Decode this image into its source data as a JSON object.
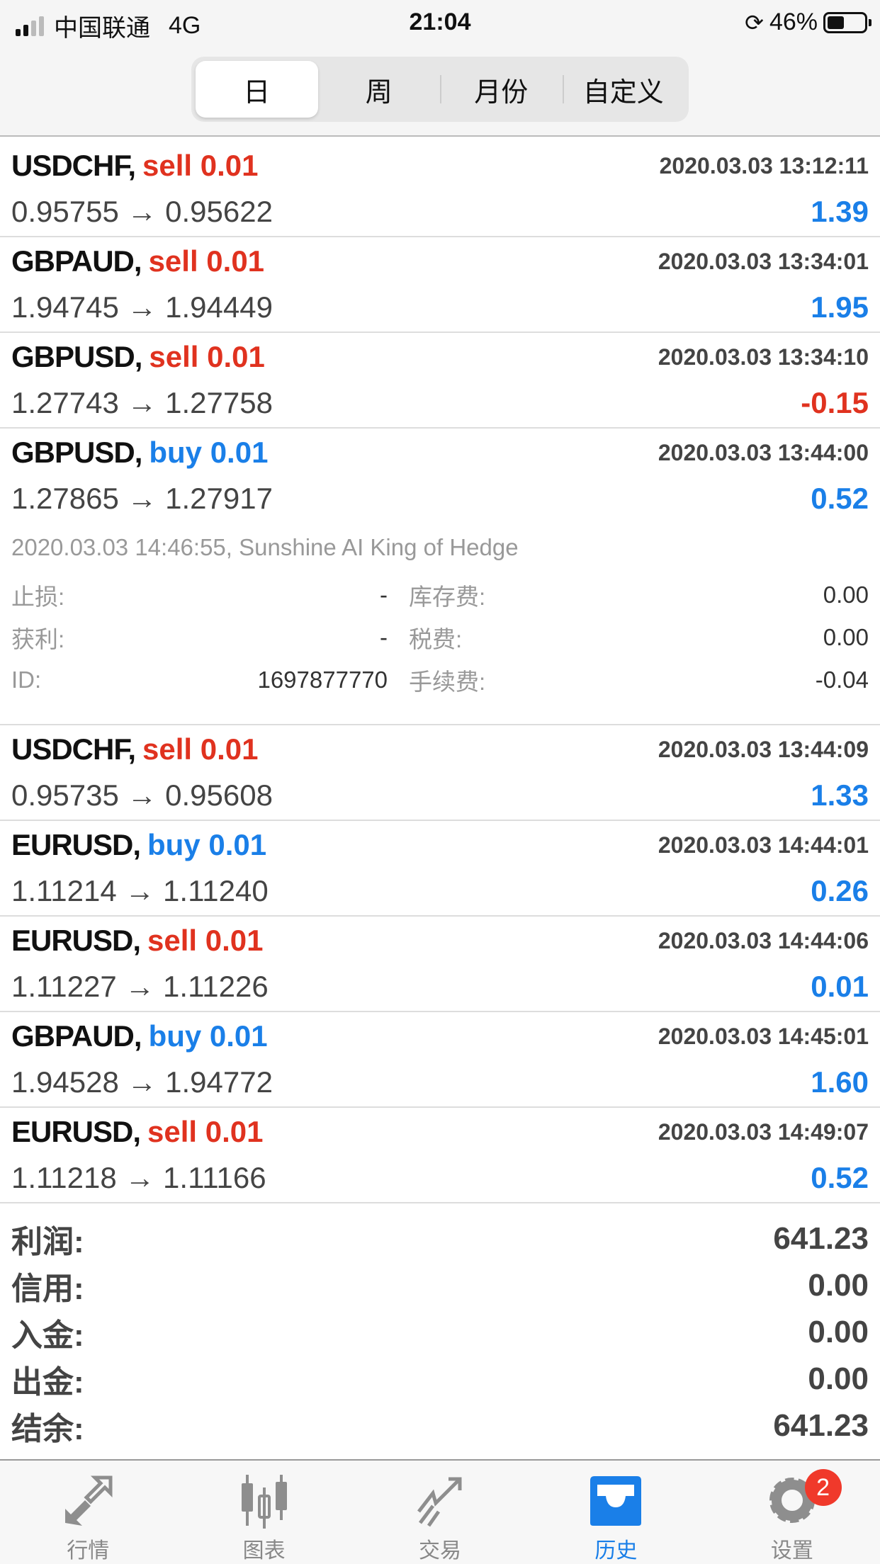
{
  "status": {
    "carrier": "中国联通",
    "network": "4G",
    "time": "21:04",
    "battery": "46%",
    "battery_level": 46
  },
  "tabs": [
    {
      "label": "日",
      "active": true
    },
    {
      "label": "周"
    },
    {
      "label": "月份"
    },
    {
      "label": "自定义"
    }
  ],
  "colors": {
    "sell": "#e0321f",
    "buy": "#1a7fe8",
    "loss": "#e0321f",
    "profit": "#1a7fe8",
    "active_tab": "#1a7fe8"
  },
  "trades": [
    {
      "symbol": "USDCHF,",
      "side": "sell 0.01",
      "type": "sell",
      "time": "2020.03.03 13:12:11",
      "prices": "0.95755 → 0.95622",
      "profit": "1.39"
    },
    {
      "symbol": "GBPAUD,",
      "side": "sell 0.01",
      "type": "sell",
      "time": "2020.03.03 13:34:01",
      "prices": "1.94745 → 1.94449",
      "profit": "1.95"
    },
    {
      "symbol": "GBPUSD,",
      "side": "sell 0.01",
      "type": "sell",
      "time": "2020.03.03 13:34:10",
      "prices": "1.27743 → 1.27758",
      "profit": "-0.15"
    },
    {
      "symbol": "GBPUSD,",
      "side": "buy 0.01",
      "type": "buy",
      "time": "2020.03.03 13:44:00",
      "prices": "1.27865 → 1.27917",
      "profit": "0.52",
      "details": {
        "comment": "2020.03.03 14:46:55, Sunshine AI King of Hedge",
        "sl_label": "止损:",
        "sl": "-",
        "swap_label": "库存费:",
        "swap": "0.00",
        "tp_label": "获利:",
        "tp": "-",
        "tax_label": "税费:",
        "tax": "0.00",
        "id_label": "ID:",
        "id": "1697877770",
        "fee_label": "手续费:",
        "fee": "-0.04"
      }
    },
    {
      "symbol": "USDCHF,",
      "side": "sell 0.01",
      "type": "sell",
      "time": "2020.03.03 13:44:09",
      "prices": "0.95735 → 0.95608",
      "profit": "1.33"
    },
    {
      "symbol": "EURUSD,",
      "side": "buy 0.01",
      "type": "buy",
      "time": "2020.03.03 14:44:01",
      "prices": "1.11214 → 1.11240",
      "profit": "0.26"
    },
    {
      "symbol": "EURUSD,",
      "side": "sell 0.01",
      "type": "sell",
      "time": "2020.03.03 14:44:06",
      "prices": "1.11227 → 1.11226",
      "profit": "0.01"
    },
    {
      "symbol": "GBPAUD,",
      "side": "buy 0.01",
      "type": "buy",
      "time": "2020.03.03 14:45:01",
      "prices": "1.94528 → 1.94772",
      "profit": "1.60"
    },
    {
      "symbol": "EURUSD,",
      "side": "sell 0.01",
      "type": "sell",
      "time": "2020.03.03 14:49:07",
      "prices": "1.11218 → 1.11166",
      "profit": "0.52"
    }
  ],
  "summary": [
    {
      "label": "利润:",
      "value": "641.23"
    },
    {
      "label": "信用:",
      "value": "0.00"
    },
    {
      "label": "入金:",
      "value": "0.00"
    },
    {
      "label": "出金:",
      "value": "0.00"
    },
    {
      "label": "结余:",
      "value": "641.23"
    }
  ],
  "nav": [
    {
      "label": "行情",
      "icon": "quotes-arrows-icon"
    },
    {
      "label": "图表",
      "icon": "candlestick-chart-icon"
    },
    {
      "label": "交易",
      "icon": "trade-trend-icon"
    },
    {
      "label": "历史",
      "icon": "history-inbox-icon",
      "active": true
    },
    {
      "label": "设置",
      "icon": "gear-icon",
      "badge": "2"
    }
  ]
}
